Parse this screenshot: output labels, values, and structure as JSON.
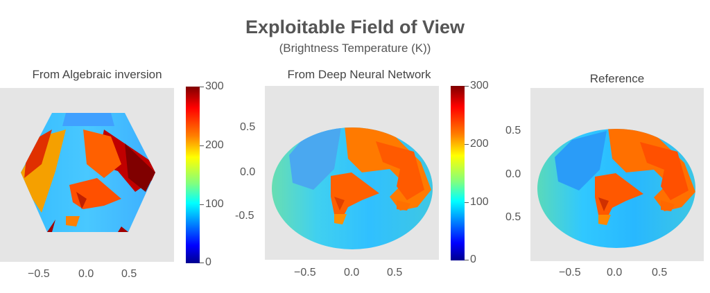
{
  "figure": {
    "title": "Exploitable Field of View",
    "subtitle": "(Brightness Temperature (K))"
  },
  "chart_data": [
    {
      "type": "heatmap",
      "title": "From Algebraic inversion",
      "footprint_shape": "hexagon",
      "x_ticks": [
        "−0.5",
        "0.0",
        "0.5"
      ],
      "y_ticks": [],
      "colorbar": {
        "ticks": [
          "300",
          "200",
          "100",
          "0"
        ],
        "range": [
          0,
          300
        ],
        "colormap": "jet"
      },
      "background_color": "#e5e5e5"
    },
    {
      "type": "heatmap",
      "title": "From Deep Neural Network",
      "footprint_shape": "ellipse",
      "x_ticks": [
        "−0.5",
        "0.0",
        "0.5"
      ],
      "y_ticks": [
        "0.5",
        "0.0",
        "-0.5"
      ],
      "colorbar": {
        "ticks": [
          "300",
          "200",
          "100",
          "0"
        ],
        "range": [
          0,
          300
        ],
        "colormap": "jet"
      },
      "background_color": "#e5e5e5"
    },
    {
      "type": "heatmap",
      "title": "Reference",
      "footprint_shape": "ellipse",
      "x_ticks": [
        "−0.5",
        "0.0",
        "0.5"
      ],
      "y_ticks": [
        "0.5",
        "0.0",
        "0.5"
      ],
      "background_color": "#e5e5e5"
    }
  ]
}
